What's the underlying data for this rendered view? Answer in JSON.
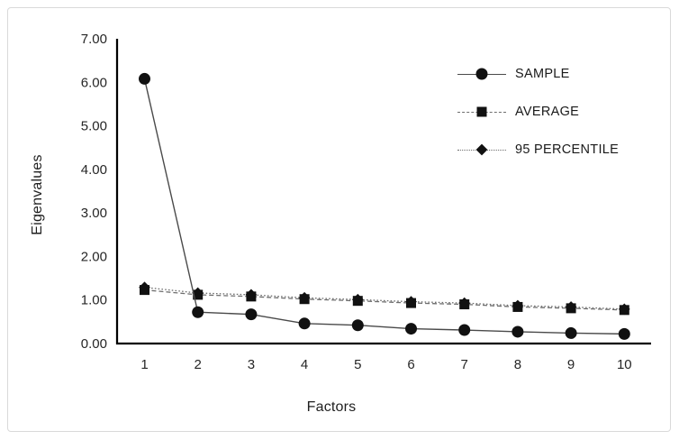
{
  "frame": {
    "background_color": "#ffffff",
    "border_color": "#d9d9d9"
  },
  "chart_data": {
    "type": "line",
    "title": "",
    "xlabel": "Factors",
    "ylabel": "Eigenvalues",
    "x": [
      1,
      2,
      3,
      4,
      5,
      6,
      7,
      8,
      9,
      10
    ],
    "ylim": [
      0,
      7
    ],
    "ytick_step": 1,
    "ytick_labels": [
      "0.00",
      "1.00",
      "2.00",
      "3.00",
      "4.00",
      "5.00",
      "6.00",
      "7.00"
    ],
    "grid": false,
    "legend_position": "top-right",
    "series": [
      {
        "name": "SAMPLE",
        "marker": "circle",
        "line_style": "solid",
        "values": [
          6.08,
          0.72,
          0.67,
          0.46,
          0.42,
          0.34,
          0.31,
          0.27,
          0.24,
          0.22
        ]
      },
      {
        "name": "AVERAGE",
        "marker": "square",
        "line_style": "dashed",
        "values": [
          1.23,
          1.12,
          1.08,
          1.02,
          0.98,
          0.93,
          0.9,
          0.84,
          0.81,
          0.77
        ]
      },
      {
        "name": "95 PERCENTILE",
        "marker": "diamond",
        "line_style": "dotted",
        "values": [
          1.29,
          1.16,
          1.12,
          1.05,
          1.01,
          0.96,
          0.93,
          0.87,
          0.84,
          0.79
        ]
      }
    ],
    "colors": {
      "solid_line": "#4a4a4a",
      "dashed_line": "#6e6e6e",
      "dotted_line": "#6e6e6e",
      "marker": "#111111",
      "axis": "#000000",
      "tick_text": "#262626"
    }
  }
}
